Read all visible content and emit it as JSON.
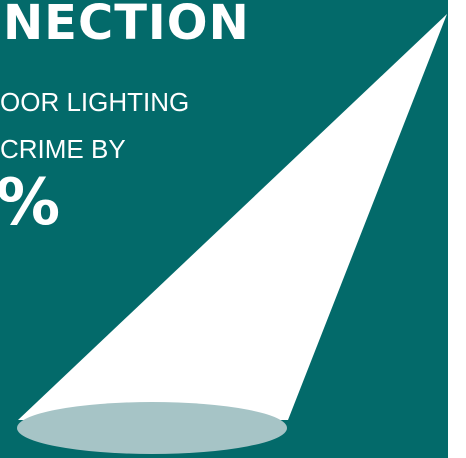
{
  "headline": {
    "title": "NECTION",
    "line_1": "OOR LIGHTING",
    "line_2": "CRIME BY",
    "percent": "%"
  },
  "colors": {
    "panel_background": "#036a6a",
    "light_beam": "#ffffff",
    "light_pool": "#a6c4c6",
    "text": "#ffffff"
  }
}
